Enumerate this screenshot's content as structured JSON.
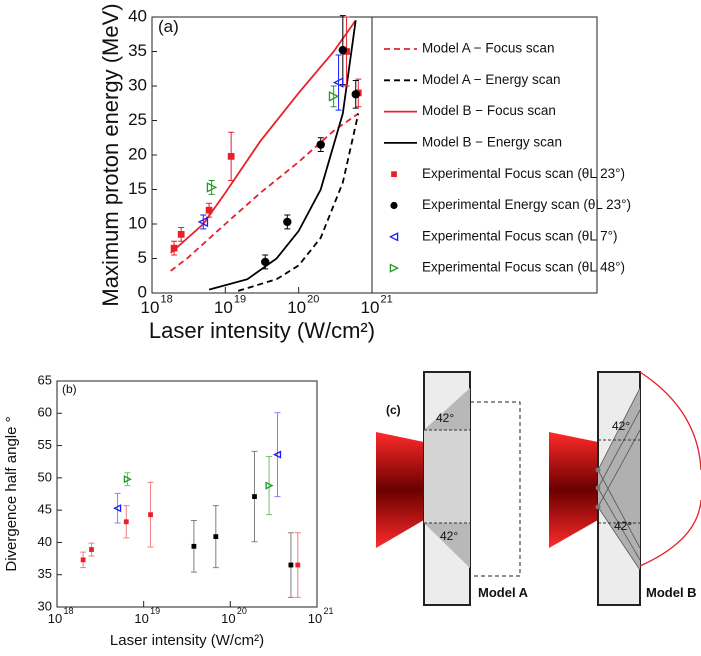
{
  "chart_data": [
    {
      "type": "scatter",
      "title": "(a)",
      "xlabel": "Laser intensity (W/cm²)",
      "ylabel": "Maximum proton energy (MeV)",
      "xscale": "log",
      "xlim": [
        1e+18,
        1e+21
      ],
      "xticks": [
        {
          "value": 1e+18,
          "label": "10",
          "exponent": "18"
        },
        {
          "value": 1e+19,
          "label": "10",
          "exponent": "19"
        },
        {
          "value": 1e+20,
          "label": "10",
          "exponent": "20"
        },
        {
          "value": 1e+21,
          "label": "10",
          "exponent": "21"
        }
      ],
      "ylim": [
        0,
        40
      ],
      "yticks": [
        0,
        5,
        10,
        15,
        20,
        25,
        30,
        35,
        40
      ],
      "legend": "outside right",
      "series": [
        {
          "name": "Model A − Focus scan",
          "type": "line",
          "dash": true,
          "color": "#e8202a",
          "x": [
            1.8e+18,
            3e+18,
            1e+19,
            3e+19,
            1e+20,
            3e+20,
            6.5e+20
          ],
          "values": [
            3.2,
            5,
            10,
            14.5,
            19,
            23.5,
            26
          ]
        },
        {
          "name": "Model A − Energy scan",
          "type": "line",
          "dash": true,
          "color": "#000000",
          "x": [
            1.5e+19,
            5e+19,
            1e+20,
            2e+20,
            4e+20,
            6.5e+20
          ],
          "values": [
            0.3,
            2,
            4,
            8,
            16,
            26
          ]
        },
        {
          "name": "Model B − Focus scan",
          "type": "line",
          "dash": false,
          "color": "#e8202a",
          "x": [
            1.8e+18,
            5e+18,
            1e+19,
            3e+19,
            1e+20,
            3e+20,
            6e+20
          ],
          "values": [
            5.8,
            10,
            14.5,
            22,
            29,
            35,
            39.5
          ]
        },
        {
          "name": "Model B − Energy scan",
          "type": "line",
          "dash": false,
          "color": "#000000",
          "x": [
            6e+18,
            2e+19,
            5e+19,
            1e+20,
            2e+20,
            4e+20,
            6e+20
          ],
          "values": [
            0.5,
            2,
            5,
            9,
            15,
            26,
            39.5
          ]
        },
        {
          "name": "Experimental Focus scan (θL 23°)",
          "type": "scatter",
          "marker": "square",
          "color": "#e8202a",
          "error_color": "#e8202a",
          "x": [
            2e+18,
            2.5e+18,
            6e+18,
            1.2e+19,
            4.5e+20,
            6.5e+20
          ],
          "values": [
            6.5,
            8.5,
            12,
            19.8,
            35,
            29
          ],
          "errors": [
            1,
            1,
            1,
            3.5,
            5,
            2
          ]
        },
        {
          "name": "Experimental Energy scan (θL 23°)",
          "type": "scatter",
          "marker": "circle",
          "color": "#000000",
          "error_color": "#000000",
          "x": [
            3.5e+19,
            7e+19,
            2e+20,
            4e+20,
            6e+20
          ],
          "values": [
            4.5,
            10.3,
            21.5,
            35.2,
            28.8
          ],
          "errors": [
            1,
            1,
            1,
            5,
            2
          ]
        },
        {
          "name": "Experimental Focus scan (θL 7°)",
          "type": "scatter",
          "marker": "triangle-left",
          "color": "#1a1aff",
          "error_color": "#1a1aff",
          "x": [
            5e+18,
            3.5e+20
          ],
          "values": [
            10.3,
            30.5
          ],
          "errors": [
            1,
            4
          ]
        },
        {
          "name": "Experimental Focus scan (θL 48°)",
          "type": "scatter",
          "marker": "triangle-right",
          "color": "#1f9a1f",
          "error_color": "#1f9a1f",
          "x": [
            6.5e+18,
            3e+20
          ],
          "values": [
            15.3,
            28.5
          ],
          "errors": [
            1,
            1.5
          ]
        }
      ]
    },
    {
      "type": "scatter",
      "title": "(b)",
      "xlabel": "Laser intensity (W/cm²)",
      "ylabel": "Divergence half angle °",
      "xscale": "log",
      "xlim": [
        1e+18,
        1e+21
      ],
      "xticks": [
        {
          "value": 1e+18,
          "label": "10",
          "exponent": "18"
        },
        {
          "value": 1e+19,
          "label": "10",
          "exponent": "19"
        },
        {
          "value": 1e+20,
          "label": "10",
          "exponent": "20"
        },
        {
          "value": 1e+21,
          "label": "10",
          "exponent": "21"
        }
      ],
      "ylim": [
        30,
        65
      ],
      "yticks": [
        30,
        35,
        40,
        45,
        50,
        55,
        60,
        65
      ],
      "series": [
        {
          "type": "scatter",
          "marker": "square",
          "color": "#e8202a",
          "error_color": "#f08080",
          "x": [
            2e+18,
            2.5e+18,
            6.3e+18,
            1.2e+19,
            6e+20
          ],
          "values": [
            37.3,
            38.9,
            43.2,
            44.3,
            36.5
          ],
          "errors": [
            1.2,
            1,
            2.5,
            5,
            5
          ]
        },
        {
          "type": "scatter",
          "marker": "triangle-left",
          "color": "#1a1aff",
          "error_color": "#8080ff",
          "x": [
            5e+18,
            3.5e+20
          ],
          "values": [
            45.3,
            53.6
          ],
          "errors": [
            2.3,
            6.5
          ]
        },
        {
          "type": "scatter",
          "marker": "triangle-right",
          "color": "#1f9a1f",
          "error_color": "#70c070",
          "x": [
            6.5e+18,
            2.8e+20
          ],
          "values": [
            49.8,
            48.8
          ],
          "errors": [
            1,
            4.5
          ]
        },
        {
          "type": "scatter",
          "marker": "square",
          "color": "#000000",
          "error_color": "#808080",
          "x": [
            3.8e+19,
            6.8e+19,
            1.9e+20,
            5e+20
          ],
          "values": [
            39.4,
            40.9,
            47.1,
            36.5
          ],
          "errors": [
            4,
            4.8,
            7,
            5
          ]
        }
      ]
    }
  ],
  "diagram": {
    "label": "(c)",
    "models": [
      {
        "name": "Model A",
        "angles": [
          "42°",
          "42°"
        ]
      },
      {
        "name": "Model B",
        "angles": [
          "42°",
          "42°"
        ]
      }
    ]
  }
}
